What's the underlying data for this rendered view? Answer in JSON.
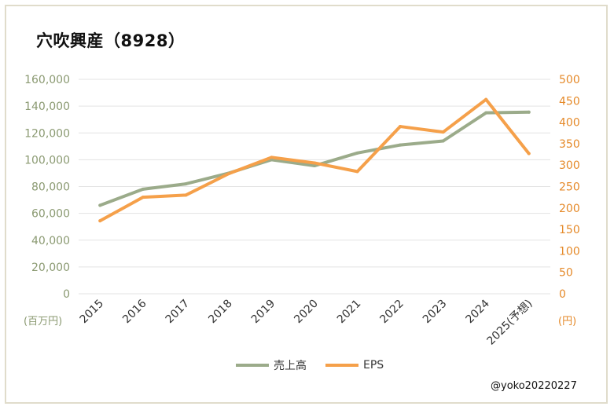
{
  "title": "穴吹興産（8928）",
  "credit": "@yoko20220227",
  "units": {
    "left": "(百万円)",
    "right": "(円)"
  },
  "colors": {
    "sales": "#9bab8a",
    "eps": "#f5a04a",
    "left_axis": "#8b9a72",
    "right_axis": "#e58a2a",
    "grid": "#e3e3e3"
  },
  "chart_data": {
    "type": "line",
    "categories": [
      "2015",
      "2016",
      "2017",
      "2018",
      "2019",
      "2020",
      "2021",
      "2022",
      "2023",
      "2024",
      "2025(予想)"
    ],
    "series": [
      {
        "name": "売上高",
        "axis": "left",
        "values": [
          66000,
          78000,
          82000,
          90000,
          100000,
          95500,
          105000,
          111000,
          114000,
          135000,
          135500
        ]
      },
      {
        "name": "EPS",
        "axis": "right",
        "values": [
          170,
          225,
          230,
          280,
          318,
          305,
          285,
          390,
          377,
          453,
          327
        ]
      }
    ],
    "left_axis": {
      "ylim": [
        0,
        160000
      ],
      "ticks": [
        "0",
        "20,000",
        "40,000",
        "60,000",
        "80,000",
        "100,000",
        "120,000",
        "140,000",
        "160,000"
      ]
    },
    "right_axis": {
      "ylim": [
        0,
        500
      ],
      "ticks": [
        "0",
        "50",
        "100",
        "150",
        "200",
        "250",
        "300",
        "350",
        "400",
        "450",
        "500"
      ]
    },
    "grid": true,
    "legend": "bottom"
  }
}
